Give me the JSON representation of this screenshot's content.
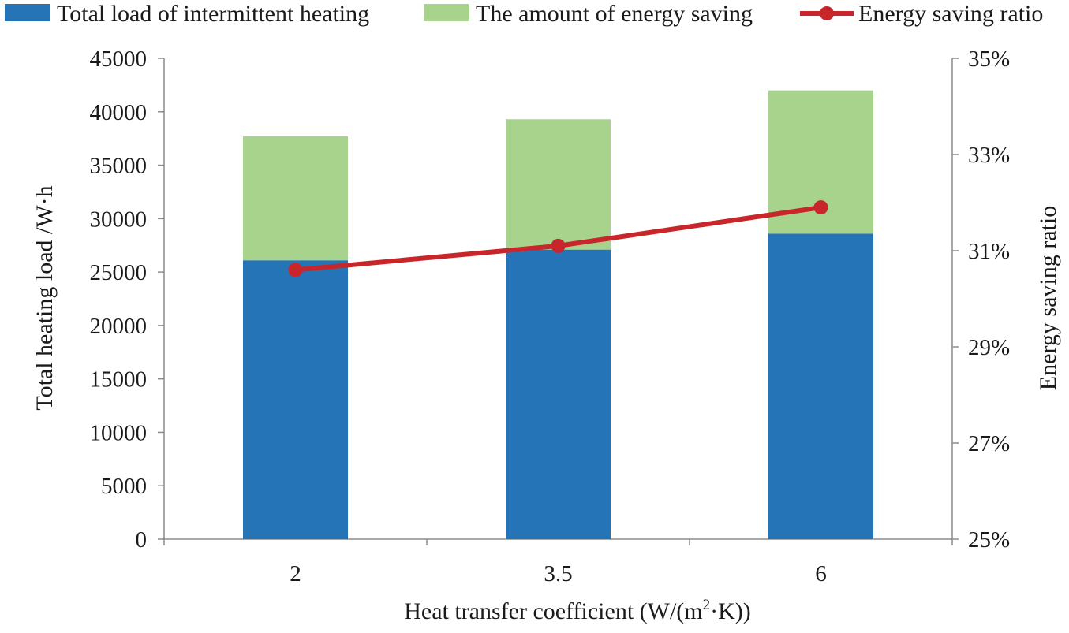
{
  "chart_data": {
    "type": "bar",
    "stacked": true,
    "categories": [
      "2",
      "3.5",
      "6"
    ],
    "series": [
      {
        "name": "Total load of intermittent heating",
        "type": "bar",
        "axis": "left",
        "values": [
          26100,
          27100,
          28600
        ],
        "color": "#2574b7"
      },
      {
        "name": "The amount of energy saving",
        "type": "bar",
        "axis": "left",
        "values": [
          11600,
          12200,
          13400
        ],
        "color": "#a8d38d"
      },
      {
        "name": "Energy saving ratio",
        "type": "line",
        "axis": "right",
        "values": [
          0.306,
          0.311,
          0.319
        ],
        "color": "#c8262a"
      }
    ],
    "left_axis": {
      "title": "Total heating load /W·h",
      "ylim": [
        0,
        45000
      ],
      "ticks": [
        0,
        5000,
        10000,
        15000,
        20000,
        25000,
        30000,
        35000,
        40000,
        45000
      ],
      "tick_labels": [
        "0",
        "5000",
        "10000",
        "15000",
        "20000",
        "25000",
        "30000",
        "35000",
        "40000",
        "45000"
      ]
    },
    "right_axis": {
      "title": "Energy saving ratio",
      "ylim": [
        0.25,
        0.35
      ],
      "ticks": [
        0.25,
        0.27,
        0.29,
        0.31,
        0.33,
        0.35
      ],
      "tick_labels": [
        "25%",
        "27%",
        "29%",
        "31%",
        "33%",
        "35%"
      ]
    },
    "x_axis": {
      "title_prefix": "Heat transfer coefficient  (W/(m",
      "title_sup": "2",
      "title_suffix": "·K))"
    },
    "legend_position": "top",
    "grid": false
  }
}
